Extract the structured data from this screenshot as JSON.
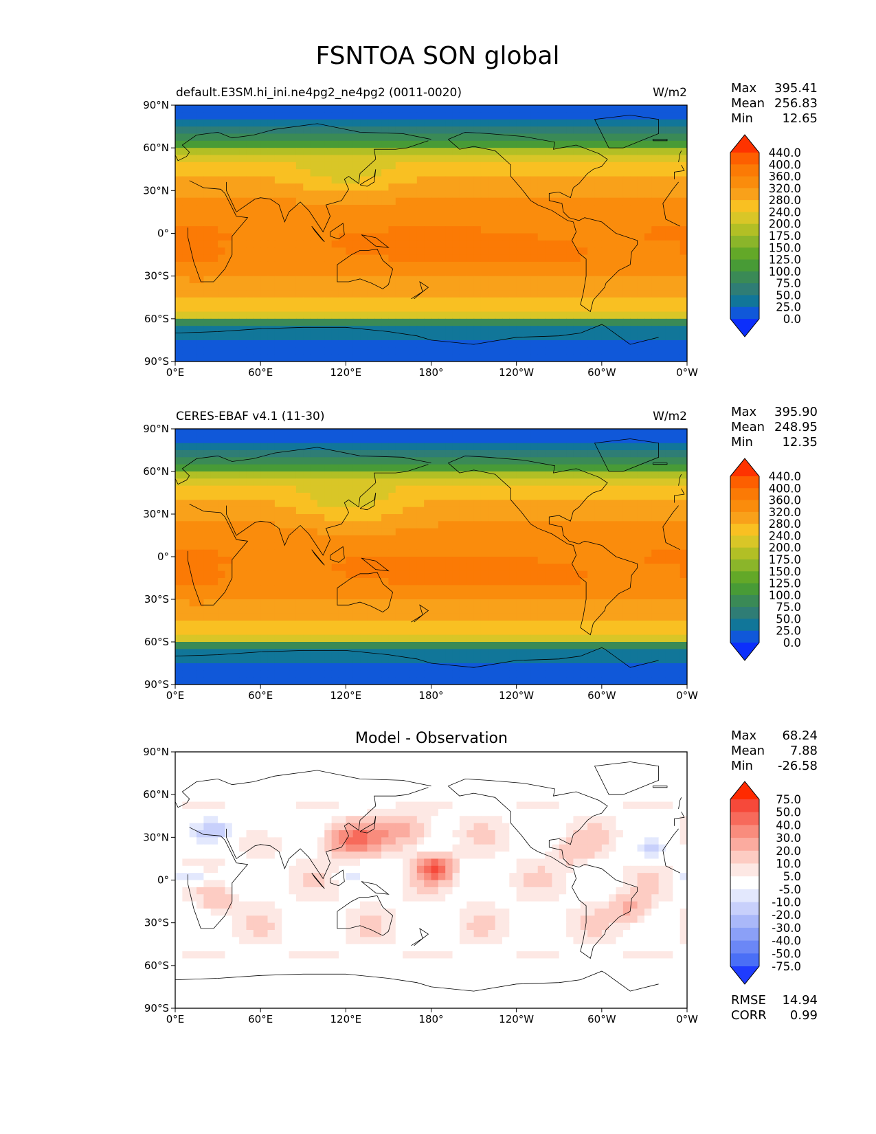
{
  "figure": {
    "title": "FSNTOA SON global"
  },
  "chart_data": [
    {
      "type": "heatmap",
      "subtitle_left": "default.E3SM.hi_ini.ne4pg2_ne4pg2 (0011-0020)",
      "subtitle_right": "W/m2",
      "stats": [
        {
          "label": "Max",
          "value": "395.41"
        },
        {
          "label": "Mean",
          "value": "256.83"
        },
        {
          "label": "Min",
          "value": "12.65"
        }
      ],
      "lon_ticks": [
        "0°E",
        "60°E",
        "120°E",
        "180°",
        "120°W",
        "60°W",
        "0°W"
      ],
      "lat_ticks": [
        "90°N",
        "60°N",
        "30°N",
        "0°",
        "30°S",
        "60°S",
        "90°S"
      ],
      "colorbar": {
        "levels": [
          "440.0",
          "400.0",
          "360.0",
          "320.0",
          "280.0",
          "240.0",
          "200.0",
          "175.0",
          "150.0",
          "125.0",
          "100.0",
          "75.0",
          "50.0",
          "25.0",
          "0.0"
        ],
        "colors": [
          "#fe3300",
          "#fd5f00",
          "#fb7a05",
          "#fa8c0c",
          "#f9a11a",
          "#f9c022",
          "#d9c627",
          "#b2bf25",
          "#8bb52a",
          "#63a828",
          "#489b36",
          "#3a8a56",
          "#2f7d75",
          "#117699",
          "#1058d9",
          "#0c2ffb"
        ]
      },
      "field": "model"
    },
    {
      "type": "heatmap",
      "subtitle_left": "CERES-EBAF v4.1 (11-30)",
      "subtitle_right": "W/m2",
      "stats": [
        {
          "label": "Max",
          "value": "395.90"
        },
        {
          "label": "Mean",
          "value": "248.95"
        },
        {
          "label": "Min",
          "value": "12.35"
        }
      ],
      "lon_ticks": [
        "0°E",
        "60°E",
        "120°E",
        "180°",
        "120°W",
        "60°W",
        "0°W"
      ],
      "lat_ticks": [
        "90°N",
        "60°N",
        "30°N",
        "0°",
        "30°S",
        "60°S",
        "90°S"
      ],
      "colorbar": {
        "levels": [
          "440.0",
          "400.0",
          "360.0",
          "320.0",
          "280.0",
          "240.0",
          "200.0",
          "175.0",
          "150.0",
          "125.0",
          "100.0",
          "75.0",
          "50.0",
          "25.0",
          "0.0"
        ],
        "colors": [
          "#fe3300",
          "#fd5f00",
          "#fb7a05",
          "#fa8c0c",
          "#f9a11a",
          "#f9c022",
          "#d9c627",
          "#b2bf25",
          "#8bb52a",
          "#63a828",
          "#489b36",
          "#3a8a56",
          "#2f7d75",
          "#117699",
          "#1058d9",
          "#0c2ffb"
        ]
      },
      "field": "obs"
    },
    {
      "type": "heatmap",
      "title": "Model - Observation",
      "stats": [
        {
          "label": "Max",
          "value": "68.24"
        },
        {
          "label": "Mean",
          "value": "7.88"
        },
        {
          "label": "Min",
          "value": "-26.58"
        }
      ],
      "extra_stats": [
        {
          "label": "RMSE",
          "value": "14.94"
        },
        {
          "label": "CORR",
          "value": "0.99"
        }
      ],
      "lon_ticks": [
        "0°E",
        "60°E",
        "120°E",
        "180°",
        "120°W",
        "60°W",
        "0°W"
      ],
      "lat_ticks": [
        "90°N",
        "60°N",
        "30°N",
        "0°",
        "30°S",
        "60°S",
        "90°S"
      ],
      "colorbar": {
        "levels": [
          "75.0",
          "50.0",
          "40.0",
          "30.0",
          "20.0",
          "10.0",
          "5.0",
          "-5.0",
          "-10.0",
          "-20.0",
          "-30.0",
          "-40.0",
          "-50.0",
          "-75.0"
        ],
        "colors": [
          "#ff2a00",
          "#f6493a",
          "#f76a5b",
          "#f98c7d",
          "#fbab9f",
          "#fdccc3",
          "#fde8e4",
          "#ffffff",
          "#e3e8fd",
          "#c8d0fb",
          "#aab8f9",
          "#8ba0f7",
          "#6b87f6",
          "#4a6ff6",
          "#1f3cff"
        ]
      },
      "field": "diff"
    }
  ]
}
